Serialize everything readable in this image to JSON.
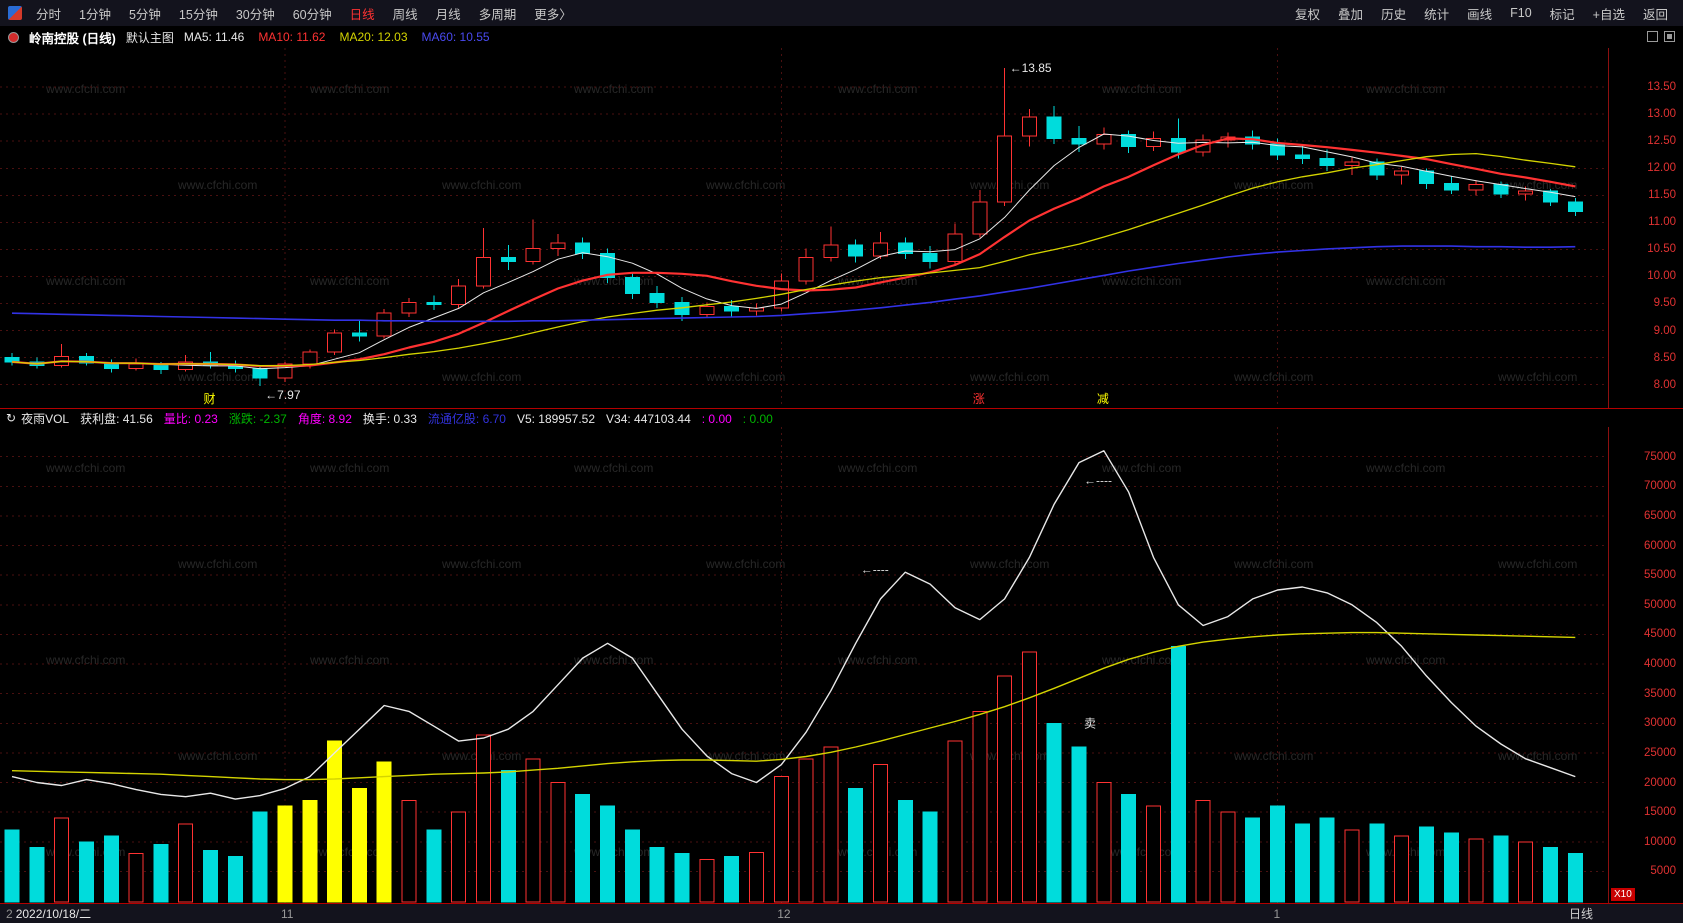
{
  "watermark": "www.cfchi.com",
  "colors": {
    "up": "#ff3232",
    "down": "#00dcdc",
    "signal": "#ffff00",
    "ma5": "#e8e8e8",
    "ma10": "#ff3232",
    "ma20": "#d4d400",
    "ma60": "#3232e6",
    "grid": "#4a1010",
    "axis_text": "#e13232",
    "divider": "#b40000",
    "watermark_color": "#282828",
    "menubar_bg": "#13131d",
    "active": "#ff3232"
  },
  "menubar": {
    "items": [
      {
        "label": "分时"
      },
      {
        "label": "1分钟"
      },
      {
        "label": "5分钟"
      },
      {
        "label": "15分钟"
      },
      {
        "label": "30分钟"
      },
      {
        "label": "60分钟"
      },
      {
        "label": "日线",
        "active": true
      },
      {
        "label": "周线"
      },
      {
        "label": "月线"
      },
      {
        "label": "多周期"
      },
      {
        "label": "更多〉"
      }
    ],
    "right_items": [
      "复权",
      "叠加",
      "历史",
      "统计",
      "画线",
      "F10",
      "标记",
      "+自选",
      "返回"
    ]
  },
  "titlebar": {
    "stock": "岭南控股 (日线)",
    "style_label": "默认主图",
    "mas": [
      {
        "text": "MA5: 11.46",
        "color": "#e8e8e8"
      },
      {
        "text": "MA10: 11.62",
        "color": "#ff3232"
      },
      {
        "text": "MA20: 12.03",
        "color": "#d4d400"
      },
      {
        "text": "MA60: 10.55",
        "color": "#4a4af0"
      }
    ]
  },
  "indicator": {
    "fields": [
      {
        "text": "夜雨VOL",
        "color": "#e8e8e8"
      },
      {
        "text": "获利盘: 41.56",
        "color": "#e8e8e8"
      },
      {
        "text": "量比: 0.23",
        "color": "#ff00ff"
      },
      {
        "text": "涨跌: -2.37",
        "color": "#00b400"
      },
      {
        "text": "角度: 8.92",
        "color": "#ff00ff"
      },
      {
        "text": "换手: 0.33",
        "color": "#e8e8e8"
      },
      {
        "text": "流通亿股: 6.70",
        "color": "#3232dc"
      },
      {
        "text": "V5: 189957.52",
        "color": "#e8e8e8"
      },
      {
        "text": "V34: 447103.44",
        "color": "#e8e8e8"
      },
      {
        "text": ": 0.00",
        "color": "#ff00ff"
      },
      {
        "text": ": 0.00",
        "color": "#00b400"
      }
    ]
  },
  "price_axis": {
    "ticks": [
      13.5,
      13.0,
      12.5,
      12.0,
      11.5,
      11.0,
      10.5,
      10.0,
      9.5,
      9.0,
      8.5,
      8.0
    ]
  },
  "volume_axis": {
    "ticks": [
      75000,
      70000,
      65000,
      60000,
      55000,
      50000,
      45000,
      40000,
      35000,
      30000,
      25000,
      20000,
      15000,
      10000,
      5000
    ],
    "unit": "X10"
  },
  "bottom": {
    "fragment": "2",
    "date": "2022/10/18/二",
    "months": [
      {
        "label": "11",
        "i": 11
      },
      {
        "label": "12",
        "i": 31
      },
      {
        "label": "1",
        "i": 51
      }
    ],
    "period": "日线"
  },
  "chart_data": [
    {
      "type": "candlestick",
      "title": "岭南控股 日线",
      "ylim": [
        7.9,
        14.15
      ],
      "yticks": [
        8.0,
        8.5,
        9.0,
        9.5,
        10.0,
        10.5,
        11.0,
        11.5,
        12.0,
        12.5,
        13.0,
        13.5
      ],
      "ohlc_columns": [
        "open",
        "high",
        "low",
        "close",
        "volume",
        "volume_bar_color(u=up-red,d=down-cyan,y=yellow-signal)"
      ],
      "candles": [
        [
          8.5,
          8.58,
          8.35,
          8.42,
          12000,
          "d"
        ],
        [
          8.42,
          8.5,
          8.3,
          8.35,
          9000,
          "d"
        ],
        [
          8.35,
          8.75,
          8.32,
          8.52,
          14000,
          "u"
        ],
        [
          8.52,
          8.58,
          8.35,
          8.4,
          10000,
          "d"
        ],
        [
          8.4,
          8.46,
          8.22,
          8.3,
          11000,
          "d"
        ],
        [
          8.3,
          8.48,
          8.26,
          8.38,
          8000,
          "u"
        ],
        [
          8.38,
          8.42,
          8.2,
          8.28,
          9500,
          "d"
        ],
        [
          8.28,
          8.55,
          8.24,
          8.42,
          13000,
          "u"
        ],
        [
          8.42,
          8.6,
          8.3,
          8.35,
          8500,
          "d"
        ],
        [
          8.35,
          8.45,
          8.22,
          8.3,
          7500,
          "d"
        ],
        [
          8.3,
          8.35,
          7.97,
          8.12,
          15000,
          "d"
        ],
        [
          8.12,
          8.42,
          8.05,
          8.38,
          16000,
          "y"
        ],
        [
          8.38,
          8.65,
          8.3,
          8.6,
          17000,
          "y"
        ],
        [
          8.6,
          9.02,
          8.55,
          8.95,
          27000,
          "y"
        ],
        [
          8.95,
          9.2,
          8.8,
          8.9,
          19000,
          "y"
        ],
        [
          8.9,
          9.4,
          8.85,
          9.32,
          23500,
          "y"
        ],
        [
          9.32,
          9.6,
          9.25,
          9.52,
          17000,
          "u"
        ],
        [
          9.52,
          9.65,
          9.38,
          9.48,
          12000,
          "d"
        ],
        [
          9.48,
          9.95,
          9.42,
          9.82,
          15000,
          "u"
        ],
        [
          9.82,
          10.9,
          9.78,
          10.35,
          28000,
          "u"
        ],
        [
          10.35,
          10.58,
          10.12,
          10.28,
          22000,
          "d"
        ],
        [
          10.28,
          11.05,
          10.22,
          10.52,
          24000,
          "u"
        ],
        [
          10.52,
          10.78,
          10.38,
          10.62,
          20000,
          "u"
        ],
        [
          10.62,
          10.72,
          10.32,
          10.42,
          18000,
          "d"
        ],
        [
          10.42,
          10.52,
          9.88,
          9.98,
          16000,
          "d"
        ],
        [
          9.98,
          10.06,
          9.58,
          9.68,
          12000,
          "d"
        ],
        [
          9.68,
          9.82,
          9.42,
          9.52,
          9000,
          "d"
        ],
        [
          9.52,
          9.62,
          9.18,
          9.3,
          8000,
          "d"
        ],
        [
          9.3,
          9.52,
          9.24,
          9.44,
          7000,
          "u"
        ],
        [
          9.44,
          9.56,
          9.26,
          9.36,
          7500,
          "d"
        ],
        [
          9.36,
          9.5,
          9.28,
          9.42,
          8200,
          "u"
        ],
        [
          9.42,
          10.05,
          9.35,
          9.92,
          21000,
          "u"
        ],
        [
          9.92,
          10.52,
          9.85,
          10.35,
          24000,
          "u"
        ],
        [
          10.35,
          10.92,
          10.28,
          10.58,
          26000,
          "u"
        ],
        [
          10.58,
          10.68,
          10.26,
          10.38,
          19000,
          "d"
        ],
        [
          10.38,
          10.82,
          10.32,
          10.62,
          23000,
          "u"
        ],
        [
          10.62,
          10.72,
          10.32,
          10.42,
          17000,
          "d"
        ],
        [
          10.42,
          10.56,
          10.15,
          10.28,
          15000,
          "d"
        ],
        [
          10.28,
          10.98,
          10.22,
          10.78,
          27000,
          "u"
        ],
        [
          10.78,
          11.6,
          10.72,
          11.38,
          32000,
          "u"
        ],
        [
          11.38,
          13.85,
          11.3,
          12.6,
          38000,
          "u"
        ],
        [
          12.6,
          13.1,
          12.4,
          12.95,
          42000,
          "u"
        ],
        [
          12.95,
          13.15,
          12.45,
          12.55,
          30000,
          "d"
        ],
        [
          12.55,
          12.78,
          12.3,
          12.45,
          26000,
          "d"
        ],
        [
          12.45,
          12.75,
          12.35,
          12.62,
          20000,
          "u"
        ],
        [
          12.62,
          12.7,
          12.28,
          12.4,
          18000,
          "d"
        ],
        [
          12.4,
          12.68,
          12.32,
          12.55,
          16000,
          "u"
        ],
        [
          12.55,
          12.92,
          12.18,
          12.3,
          43000,
          "d"
        ],
        [
          12.3,
          12.62,
          12.22,
          12.52,
          17000,
          "u"
        ],
        [
          12.52,
          12.66,
          12.38,
          12.58,
          15000,
          "u"
        ],
        [
          12.58,
          12.7,
          12.35,
          12.45,
          14000,
          "d"
        ],
        [
          12.45,
          12.55,
          12.15,
          12.25,
          16000,
          "d"
        ],
        [
          12.25,
          12.42,
          12.08,
          12.18,
          13000,
          "d"
        ],
        [
          12.18,
          12.35,
          11.95,
          12.05,
          14000,
          "d"
        ],
        [
          12.05,
          12.22,
          11.88,
          12.12,
          12000,
          "u"
        ],
        [
          12.12,
          12.18,
          11.78,
          11.88,
          13000,
          "d"
        ],
        [
          11.88,
          12.02,
          11.7,
          11.95,
          11000,
          "u"
        ],
        [
          11.95,
          12.0,
          11.62,
          11.72,
          12500,
          "d"
        ],
        [
          11.72,
          11.85,
          11.52,
          11.6,
          11500,
          "d"
        ],
        [
          11.6,
          11.78,
          11.5,
          11.7,
          10500,
          "u"
        ],
        [
          11.7,
          11.76,
          11.45,
          11.52,
          11000,
          "d"
        ],
        [
          11.52,
          11.66,
          11.4,
          11.58,
          10000,
          "u"
        ],
        [
          11.58,
          11.62,
          11.3,
          11.38,
          9000,
          "d"
        ],
        [
          11.38,
          11.45,
          11.12,
          11.2,
          8000,
          "d"
        ]
      ],
      "ma60": [
        9.32,
        9.31,
        9.3,
        9.29,
        9.28,
        9.27,
        9.26,
        9.25,
        9.24,
        9.23,
        9.22,
        9.21,
        9.2,
        9.19,
        9.19,
        9.18,
        9.18,
        9.17,
        9.17,
        9.17,
        9.17,
        9.18,
        9.18,
        9.19,
        9.2,
        9.21,
        9.22,
        9.23,
        9.24,
        9.25,
        9.26,
        9.28,
        9.31,
        9.34,
        9.38,
        9.42,
        9.47,
        9.52,
        9.58,
        9.64,
        9.71,
        9.78,
        9.86,
        9.94,
        10.02,
        10.1,
        10.17,
        10.24,
        10.3,
        10.36,
        10.41,
        10.45,
        10.48,
        10.51,
        10.53,
        10.55,
        10.56,
        10.56,
        10.56,
        10.55,
        10.55,
        10.54,
        10.54,
        10.55
      ],
      "annotations": [
        {
          "text": "←13.85",
          "i": 40,
          "v": 13.85,
          "color": "#e8e8e8"
        },
        {
          "text": "←7.97",
          "i": 10,
          "v": 7.97,
          "dy": 13,
          "color": "#e8e8e8"
        },
        {
          "text": "财",
          "i": 8,
          "bottom": true,
          "color": "#ffff00"
        },
        {
          "text": "涨",
          "i": 39,
          "bottom": true,
          "color": "#ff3232"
        },
        {
          "text": "减",
          "i": 44,
          "bottom": true,
          "color": "#ffff00"
        }
      ]
    },
    {
      "type": "bar+line",
      "title": "夜雨VOL 成交量",
      "ylim": [
        0,
        79000
      ],
      "yticks": [
        5000,
        10000,
        15000,
        20000,
        25000,
        30000,
        35000,
        40000,
        45000,
        50000,
        55000,
        60000,
        65000,
        70000,
        75000
      ],
      "bars_source": "candles volume column of chart 0",
      "series": [
        {
          "name": "V5",
          "color": "#e8e8e8",
          "values": [
            21000,
            20000,
            19500,
            20500,
            19800,
            18800,
            18000,
            17600,
            18200,
            17200,
            17800,
            19000,
            21000,
            25000,
            29000,
            33000,
            32000,
            29500,
            27000,
            27500,
            29000,
            32000,
            36500,
            41000,
            43500,
            41000,
            35000,
            29000,
            24500,
            21500,
            20000,
            23000,
            28500,
            35500,
            43500,
            51000,
            55500,
            53500,
            49500,
            47500,
            51000,
            58000,
            67000,
            74000,
            76000,
            69000,
            58000,
            50000,
            46500,
            48000,
            51000,
            52500,
            53000,
            52000,
            50000,
            47000,
            43000,
            38000,
            33500,
            29500,
            26500,
            24000,
            22500,
            21000
          ]
        },
        {
          "name": "V34",
          "color": "#d4d400",
          "values": [
            22000,
            21900,
            21800,
            21700,
            21600,
            21500,
            21400,
            21200,
            21000,
            20800,
            20600,
            20500,
            20500,
            20600,
            20800,
            21000,
            21200,
            21400,
            21500,
            21600,
            21800,
            22100,
            22400,
            22800,
            23200,
            23500,
            23700,
            23800,
            23800,
            23700,
            23600,
            23900,
            24400,
            25100,
            26000,
            27000,
            28100,
            29200,
            30300,
            31500,
            32800,
            34300,
            35900,
            37600,
            39300,
            40800,
            42000,
            43000,
            43700,
            44200,
            44600,
            44900,
            45100,
            45200,
            45300,
            45300,
            45200,
            45100,
            45000,
            44900,
            44800,
            44700,
            44600,
            44500
          ]
        }
      ],
      "annotations": [
        {
          "text": "←----",
          "i": 34,
          "v": 56000,
          "color": "#d8d8d8"
        },
        {
          "text": "←----",
          "i": 43,
          "v": 71000,
          "color": "#d8d8d8"
        },
        {
          "text": "卖",
          "i": 43,
          "v": 30000,
          "color": "#e8e8e8"
        }
      ]
    }
  ]
}
